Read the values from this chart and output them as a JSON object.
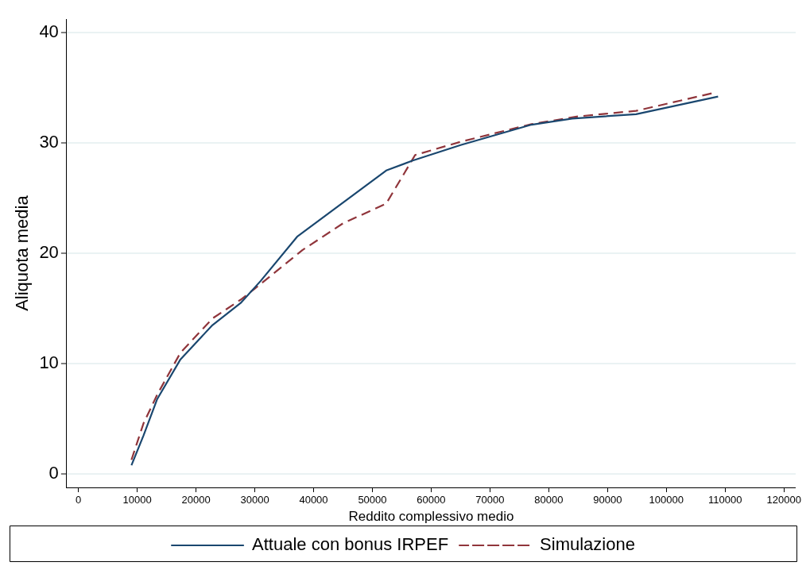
{
  "chart_data": {
    "type": "line",
    "xlabel": "Reddito complessivo medio",
    "ylabel": "Aliquota media",
    "xlim": [
      -2000,
      122000
    ],
    "xticks": [
      0,
      10000,
      20000,
      30000,
      40000,
      50000,
      60000,
      70000,
      80000,
      90000,
      100000,
      110000,
      120000
    ],
    "ylim": [
      -1.2,
      41.2
    ],
    "yticks": [
      0,
      10,
      20,
      30,
      40
    ],
    "grid": "y",
    "legend": "bottom",
    "marker": "none",
    "series": [
      {
        "name": "Attuale con bonus IRPEF",
        "color": "#1a476f",
        "line_style": "solid",
        "x": [
          9020,
          11070,
          13400,
          17360,
          22800,
          27600,
          31000,
          37200,
          52350,
          56860,
          65000,
          77080,
          84000,
          94850,
          108800
        ],
        "values": [
          0.8,
          3.5,
          6.8,
          10.4,
          13.5,
          15.5,
          17.5,
          21.5,
          27.5,
          28.4,
          29.8,
          31.65,
          32.2,
          32.6,
          34.2
        ]
      },
      {
        "name": "Simulazione",
        "color": "#90353b",
        "line_style": "dashed",
        "x": [
          9020,
          11070,
          13400,
          17360,
          22800,
          27600,
          30000,
          38130,
          44970,
          52350,
          57270,
          65000,
          77080,
          85000,
          94850,
          107840
        ],
        "values": [
          1.3,
          4.6,
          7.2,
          11.0,
          14.1,
          15.8,
          16.8,
          20.3,
          22.7,
          24.5,
          28.9,
          30.1,
          31.7,
          32.4,
          32.9,
          34.5
        ]
      }
    ]
  }
}
